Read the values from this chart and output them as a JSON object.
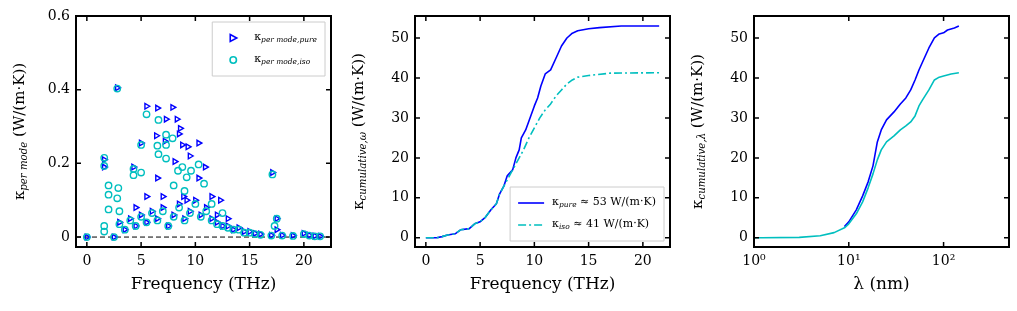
{
  "chart_data": [
    {
      "type": "scatter",
      "xlabel": "Frequency (THz)",
      "ylabel": "κ$_{per mode}$ (W/(m·K))",
      "xlim": [
        -1.0,
        22.5
      ],
      "xticks": [
        0,
        5,
        10,
        15,
        20
      ],
      "ylim": [
        -0.027,
        0.6
      ],
      "yticks": [
        0.0,
        0.2,
        0.4,
        0.6
      ],
      "grid": false,
      "legend": "top right",
      "ref_lines": [
        {
          "axis": "y",
          "value": 0,
          "color": "#000000",
          "line_style": "dashed"
        }
      ],
      "series": [
        {
          "name": "κ$_{per mode,pure}$",
          "color": "#0000ff",
          "marker": "triangle",
          "x": [
            0,
            1.6,
            1.6,
            4.3,
            5.0,
            5.5,
            6.5,
            7.3,
            7.9,
            8.3,
            8.6,
            8.5,
            6.4,
            7.2,
            8.8,
            9.3,
            9.5,
            10.3,
            8.1,
            10.9,
            6.5,
            10.3,
            11.5,
            12.3,
            17.1,
            2.8,
            17.5,
            13,
            12,
            4.5,
            9.2,
            8.9,
            5.5,
            7,
            2.5,
            3,
            3.5,
            4,
            4.5,
            5,
            5.5,
            6,
            6.5,
            7,
            7.5,
            8,
            8.5,
            9,
            9.5,
            10,
            10.5,
            11,
            11.5,
            12,
            12.5,
            13,
            13.5,
            14,
            14.5,
            15,
            15.5,
            16,
            17,
            17.5,
            18,
            19,
            20,
            20.5,
            21,
            21.5
          ],
          "values": [
            0,
            0.21,
            0.19,
            0.19,
            0.255,
            0.355,
            0.35,
            0.32,
            0.352,
            0.32,
            0.295,
            0.28,
            0.275,
            0.26,
            0.25,
            0.245,
            0.22,
            0.255,
            0.205,
            0.19,
            0.16,
            0.16,
            0.11,
            0.1,
            0.175,
            0.405,
            0.05,
            0.05,
            0.06,
            0.08,
            0.1,
            0.11,
            0.11,
            0.11,
            0,
            0.04,
            0.02,
            0.05,
            0.03,
            0.06,
            0.04,
            0.07,
            0.05,
            0.08,
            0.03,
            0.06,
            0.09,
            0.05,
            0.07,
            0.1,
            0.06,
            0.08,
            0.05,
            0.04,
            0.03,
            0.03,
            0.02,
            0.025,
            0.015,
            0.015,
            0.01,
            0.008,
            0.005,
            0.02,
            0.005,
            0.004,
            0.01,
            0.005,
            0.003,
            0.002
          ]
        },
        {
          "name": "κ$_{per mode,iso}$",
          "color": "#00bfbf",
          "marker": "circle",
          "x": [
            0,
            2.8,
            5.5,
            6.6,
            7.3,
            7.9,
            6.5,
            7.3,
            5,
            6.6,
            7.3,
            1.6,
            1.6,
            4.3,
            4.3,
            5.0,
            8.4,
            8.8,
            9.2,
            9.6,
            10.3,
            17.1,
            2.0,
            2.0,
            2.9,
            2.8,
            8.0,
            9.0,
            10.8,
            11.5,
            12.5,
            17.5,
            17.3,
            2.0,
            3,
            1.6,
            1.6,
            2.5,
            3,
            3.5,
            4,
            4.5,
            5,
            5.5,
            6,
            6.5,
            7,
            7.5,
            8,
            8.5,
            9,
            9.5,
            10,
            10.5,
            11,
            11.5,
            12,
            12.5,
            13,
            13.5,
            14,
            14.5,
            15,
            15.5,
            16,
            17,
            18,
            19,
            20,
            20.5,
            21,
            21.5
          ],
          "values": [
            0,
            0.403,
            0.333,
            0.318,
            0.278,
            0.268,
            0.248,
            0.25,
            0.25,
            0.225,
            0.213,
            0.215,
            0.193,
            0.185,
            0.168,
            0.175,
            0.18,
            0.19,
            0.162,
            0.18,
            0.197,
            0.17,
            0.14,
            0.115,
            0.133,
            0.105,
            0.14,
            0.125,
            0.145,
            0.09,
            0.065,
            0.05,
            0.03,
            0.075,
            0.07,
            0.03,
            0.015,
            0,
            0.035,
            0.02,
            0.045,
            0.03,
            0.055,
            0.04,
            0.065,
            0.045,
            0.07,
            0.03,
            0.055,
            0.08,
            0.045,
            0.065,
            0.09,
            0.055,
            0.07,
            0.045,
            0.035,
            0.03,
            0.025,
            0.02,
            0.02,
            0.012,
            0.012,
            0.008,
            0.006,
            0.004,
            0.004,
            0.003,
            0.008,
            0.004,
            0.002,
            0.002
          ]
        }
      ]
    },
    {
      "type": "line",
      "xlabel": "Frequency (THz)",
      "ylabel": "κ$_{cumulative,ω}$ (W/(m·K))",
      "xlim": [
        -1.0,
        22.5
      ],
      "xticks": [
        0,
        5,
        10,
        15,
        20
      ],
      "ylim": [
        -2.3,
        55.5
      ],
      "yticks": [
        0,
        10,
        20,
        30,
        40,
        50
      ],
      "grid": false,
      "legend": "bottom right",
      "series": [
        {
          "name": "κ$_{pure}$ ≈ 53 W/(m·K)",
          "color": "#0000ff",
          "line_style": "solid",
          "x": [
            0,
            1,
            1.5,
            2,
            2.7,
            3.2,
            4,
            4.5,
            5,
            5.5,
            6,
            6.5,
            6.8,
            7.2,
            7.5,
            8,
            8.3,
            8.6,
            8.8,
            9.2,
            9.6,
            10,
            10.3,
            10.6,
            11,
            11.5,
            12,
            12.5,
            13,
            13.5,
            14,
            15,
            16,
            18,
            21.5
          ],
          "values": [
            0,
            0,
            0.3,
            0.7,
            1,
            2,
            2.3,
            3.5,
            4,
            5.2,
            7,
            8.5,
            11,
            13,
            15.5,
            17,
            20,
            22,
            25,
            27,
            30,
            33,
            35,
            38,
            41,
            42,
            45,
            48,
            50,
            51.2,
            51.8,
            52.3,
            52.6,
            53,
            53
          ]
        },
        {
          "name": "κ$_{iso}$ ≈ 41 W/(m·K)",
          "color": "#00bfbf",
          "line_style": "dashdot",
          "x": [
            0,
            1,
            1.5,
            2,
            2.7,
            3.2,
            4,
            4.5,
            5,
            5.5,
            6,
            6.5,
            6.8,
            7.2,
            7.5,
            8,
            8.5,
            9,
            9.5,
            10,
            10.5,
            11,
            11.5,
            12,
            12.5,
            13,
            13.5,
            14,
            15,
            17,
            21.5
          ],
          "values": [
            0,
            0,
            0.3,
            0.7,
            1,
            2,
            2.3,
            3.5,
            4,
            5.2,
            7,
            8.5,
            11,
            13,
            14.5,
            17,
            19.5,
            22,
            25,
            27.5,
            30,
            32,
            33.5,
            35.5,
            37,
            38.5,
            39.5,
            40.2,
            40.6,
            41.2,
            41.3
          ]
        }
      ]
    },
    {
      "type": "line",
      "xlabel": "λ (nm)",
      "ylabel": "κ$_{cumulative,λ}$ (W/(m·K))",
      "log": "x",
      "xlim": [
        1,
        490
      ],
      "xticks": [
        {
          "value": 1,
          "label": "10⁰"
        },
        {
          "value": 10,
          "label": "10¹"
        },
        {
          "value": 100,
          "label": "10²"
        }
      ],
      "ylim": [
        -2.3,
        55.5
      ],
      "yticks": [
        0,
        10,
        20,
        30,
        40,
        50
      ],
      "grid": false,
      "series": [
        {
          "color": "#0000ff",
          "line_style": "solid",
          "x": [
            9,
            10,
            12,
            14,
            16,
            18,
            20,
            22,
            25,
            30,
            35,
            40,
            45,
            50,
            55,
            60,
            70,
            80,
            90,
            100,
            110,
            130,
            145
          ],
          "values": [
            2.8,
            4,
            7,
            10.5,
            14,
            18,
            24,
            27,
            29.5,
            31.5,
            33.5,
            35,
            37,
            39.5,
            42,
            44,
            47.5,
            50,
            51,
            51.3,
            52,
            52.5,
            53
          ]
        },
        {
          "color": "#00bfbf",
          "line_style": "solid",
          "x": [
            1,
            3,
            5,
            7,
            9,
            10,
            12,
            14,
            16,
            18,
            20,
            22,
            25,
            30,
            35,
            40,
            45,
            50,
            55,
            60,
            70,
            80,
            90,
            100,
            120,
            145
          ],
          "values": [
            0,
            0.1,
            0.5,
            1.3,
            2.5,
            3.5,
            6,
            9,
            12.5,
            16,
            19.5,
            22,
            24,
            25.5,
            27,
            28,
            29,
            30.5,
            33,
            34.5,
            37,
            39.5,
            40.2,
            40.5,
            41,
            41.3
          ]
        }
      ]
    }
  ]
}
